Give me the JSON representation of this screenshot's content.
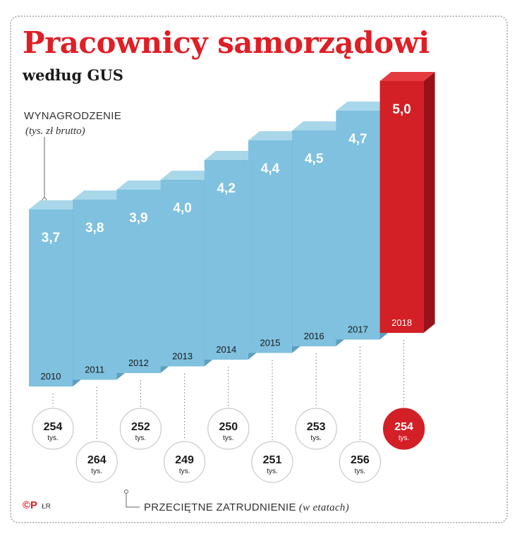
{
  "title": "Pracownicy samorządowi",
  "subtitle": "według GUS",
  "logo": {
    "mark": "©P",
    "author": "ŁR"
  },
  "colors": {
    "title": "#e01e25",
    "bar_front": "#7fc1df",
    "bar_top": "#a9d7ea",
    "bar_side": "#5a9ec0",
    "highlight_front": "#d31f26",
    "highlight_top": "#e53b40",
    "highlight_side": "#98121a"
  },
  "chart_data": {
    "type": "bar",
    "categories": [
      "2010",
      "2011",
      "2012",
      "2013",
      "2014",
      "2015",
      "2016",
      "2017",
      "2018"
    ],
    "series": [
      {
        "name": "WYNAGRODZENIE",
        "unit": "(tys. zł brutto)",
        "values": [
          3.7,
          3.8,
          3.9,
          4.0,
          4.2,
          4.4,
          4.5,
          4.7,
          5.0
        ],
        "value_labels": [
          "3,7",
          "3,8",
          "3,9",
          "4,0",
          "4,2",
          "4,4",
          "4,5",
          "4,7",
          "5,0"
        ]
      },
      {
        "name": "PRZECIĘTNE ZATRUDNIENIE",
        "unit": "(w etatach)",
        "values": [
          254,
          264,
          252,
          249,
          250,
          251,
          253,
          256,
          254
        ],
        "suffix": "tys."
      }
    ],
    "highlight": "2018"
  }
}
